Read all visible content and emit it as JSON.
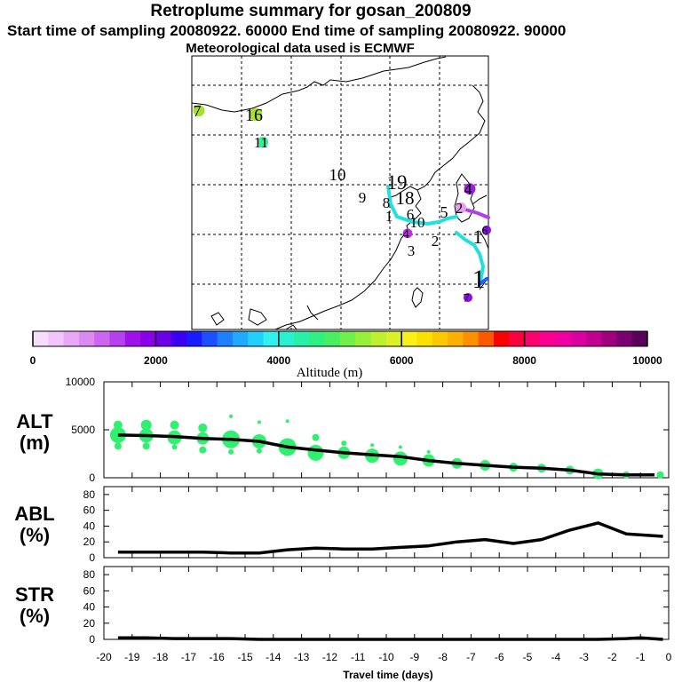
{
  "header": {
    "title": "Retroplume summary for gosan_200809",
    "sampling": "Start time of sampling 20080922. 60000     End time of sampling 20080922. 90000",
    "met": "Meteorological data used is ECMWF"
  },
  "colorbar": {
    "ticks": [
      "0",
      "2000",
      "4000",
      "6000",
      "8000",
      "10000"
    ],
    "label": "Altitude (m)",
    "colors": [
      "#f8dcfc",
      "#f2c6fa",
      "#e8a8f6",
      "#dc8af2",
      "#cc66ee",
      "#b640ec",
      "#a010ea",
      "#8a00e8",
      "#6e00e6",
      "#3c00f0",
      "#1a1aff",
      "#1c50ff",
      "#1e80ff",
      "#20aaff",
      "#20d0ff",
      "#30f0f0",
      "#28f0d0",
      "#28f0a8",
      "#30f080",
      "#48f060",
      "#70f048",
      "#98f038",
      "#bcf030",
      "#dcf028",
      "#f8f018",
      "#fce000",
      "#fcc800",
      "#fcb000",
      "#fc9000",
      "#fc5800",
      "#fc0000",
      "#fc0040",
      "#fc0070",
      "#fc0090",
      "#f000a0",
      "#dc00a0",
      "#c00090",
      "#a00080",
      "#780070",
      "#5a0058"
    ]
  },
  "map": {
    "day_labels": [
      {
        "t": "7",
        "x": 222,
        "y": 131,
        "size": 18,
        "spot": "#a8e030"
      },
      {
        "t": "16",
        "x": 286,
        "y": 136,
        "size": 20,
        "spot": "#a8e030"
      },
      {
        "t": "11",
        "x": 294,
        "y": 166,
        "size": 17,
        "spot": "#30f0a0"
      },
      {
        "t": "10",
        "x": 380,
        "y": 203,
        "size": 19,
        "spot": ""
      },
      {
        "t": "9",
        "x": 408,
        "y": 228,
        "size": 17,
        "spot": ""
      },
      {
        "t": "19",
        "x": 447,
        "y": 213,
        "size": 23,
        "spot": ""
      },
      {
        "t": "8",
        "x": 435,
        "y": 234,
        "size": 17,
        "spot": ""
      },
      {
        "t": "18",
        "x": 456,
        "y": 230,
        "size": 21,
        "spot": ""
      },
      {
        "t": "6",
        "x": 462,
        "y": 247,
        "size": 17,
        "spot": ""
      },
      {
        "t": "10",
        "x": 470,
        "y": 256,
        "size": 17,
        "spot": ""
      },
      {
        "t": "5",
        "x": 500,
        "y": 245,
        "size": 18,
        "spot": ""
      },
      {
        "t": "2",
        "x": 517,
        "y": 240,
        "size": 17,
        "spot": "#e6a0f0"
      },
      {
        "t": "4",
        "x": 527,
        "y": 219,
        "size": 18,
        "spot": "#9a20e0"
      },
      {
        "t": "1",
        "x": 438,
        "y": 249,
        "size": 17,
        "spot": ""
      },
      {
        "t": "3",
        "x": 463,
        "y": 288,
        "size": 17,
        "spot": ""
      },
      {
        "t": "4",
        "x": 457,
        "y": 268,
        "size": 15,
        "spot": "#c030e8"
      },
      {
        "t": "2",
        "x": 490,
        "y": 277,
        "size": 17,
        "spot": ""
      },
      {
        "t": "1",
        "x": 538,
        "y": 274,
        "size": 22,
        "spot": ""
      },
      {
        "t": "6",
        "x": 546,
        "y": 264,
        "size": 14,
        "spot": "#8a10e0"
      },
      {
        "t": "1",
        "x": 539,
        "y": 324,
        "size": 30,
        "spot": ""
      },
      {
        "t": "7",
        "x": 525,
        "y": 340,
        "size": 14,
        "spot": "#8a10e0"
      }
    ]
  },
  "chart_data": {
    "type": "line",
    "xlabel": "Travel time (days)",
    "x_ticks": [
      "-20",
      "-19",
      "-18",
      "-17",
      "-16",
      "-15",
      "-14",
      "-13",
      "-12",
      "-11",
      "-10",
      "-9",
      "-8",
      "-7",
      "-6",
      "-5",
      "-4",
      "-3",
      "-2",
      "-1",
      "0"
    ],
    "xlim": [
      -20,
      0
    ],
    "panels": [
      {
        "name": "ALT",
        "unit": "(m)",
        "ylim": [
          0,
          10000
        ],
        "y_ticks": [
          "0",
          "5000",
          "10000"
        ],
        "x": [
          -19.5,
          -18.5,
          -17.5,
          -16.5,
          -15.5,
          -14.5,
          -13.5,
          -12.5,
          -11.5,
          -10.5,
          -9.5,
          -8.5,
          -7.5,
          -6.5,
          -5.5,
          -4.5,
          -3.5,
          -2.5,
          -1.5,
          -0.5
        ],
        "values": [
          4450,
          4400,
          4300,
          4100,
          4000,
          3800,
          3200,
          2900,
          2600,
          2400,
          2200,
          1800,
          1500,
          1300,
          1100,
          1000,
          800,
          400,
          300,
          300
        ],
        "scatter": [
          {
            "x": -19.5,
            "y": 4450,
            "r": 9
          },
          {
            "x": -19.5,
            "y": 5500,
            "r": 5
          },
          {
            "x": -19.5,
            "y": 3300,
            "r": 4
          },
          {
            "x": -18.5,
            "y": 4400,
            "r": 8
          },
          {
            "x": -18.5,
            "y": 5500,
            "r": 6
          },
          {
            "x": -18.5,
            "y": 3300,
            "r": 4
          },
          {
            "x": -17.5,
            "y": 4200,
            "r": 8
          },
          {
            "x": -17.5,
            "y": 5500,
            "r": 5
          },
          {
            "x": -17.5,
            "y": 3200,
            "r": 3
          },
          {
            "x": -16.5,
            "y": 4100,
            "r": 7
          },
          {
            "x": -16.5,
            "y": 5200,
            "r": 5
          },
          {
            "x": -16.5,
            "y": 2900,
            "r": 4
          },
          {
            "x": -15.5,
            "y": 4000,
            "r": 10
          },
          {
            "x": -15.5,
            "y": 6400,
            "r": 2
          },
          {
            "x": -15.5,
            "y": 2700,
            "r": 3
          },
          {
            "x": -14.5,
            "y": 3800,
            "r": 8
          },
          {
            "x": -14.5,
            "y": 5800,
            "r": 2
          },
          {
            "x": -14.5,
            "y": 2800,
            "r": 3
          },
          {
            "x": -13.5,
            "y": 3200,
            "r": 10
          },
          {
            "x": -13.5,
            "y": 5900,
            "r": 2
          },
          {
            "x": -12.5,
            "y": 2600,
            "r": 9
          },
          {
            "x": -12.5,
            "y": 4200,
            "r": 4
          },
          {
            "x": -11.5,
            "y": 2600,
            "r": 7
          },
          {
            "x": -11.5,
            "y": 3600,
            "r": 3
          },
          {
            "x": -10.5,
            "y": 2300,
            "r": 8
          },
          {
            "x": -10.5,
            "y": 3400,
            "r": 2
          },
          {
            "x": -9.5,
            "y": 2000,
            "r": 8
          },
          {
            "x": -9.5,
            "y": 3200,
            "r": 2
          },
          {
            "x": -8.5,
            "y": 1800,
            "r": 7
          },
          {
            "x": -8.5,
            "y": 2700,
            "r": 2
          },
          {
            "x": -7.5,
            "y": 1500,
            "r": 6
          },
          {
            "x": -6.5,
            "y": 1300,
            "r": 6
          },
          {
            "x": -5.5,
            "y": 1100,
            "r": 5
          },
          {
            "x": -4.5,
            "y": 1000,
            "r": 5
          },
          {
            "x": -3.5,
            "y": 800,
            "r": 5
          },
          {
            "x": -2.5,
            "y": 400,
            "r": 6
          },
          {
            "x": -1.5,
            "y": 300,
            "r": 4
          },
          {
            "x": -0.3,
            "y": 300,
            "r": 4
          }
        ]
      },
      {
        "name": "ABL",
        "unit": "(%)",
        "ylim": [
          0,
          90
        ],
        "y_ticks": [
          "0",
          "20",
          "40",
          "60",
          "80"
        ],
        "x": [
          -19.5,
          -18.5,
          -17.5,
          -16.5,
          -15.5,
          -14.5,
          -13.5,
          -12.5,
          -11.5,
          -10.5,
          -9.5,
          -8.5,
          -7.5,
          -6.5,
          -5.5,
          -4.5,
          -3.5,
          -2.5,
          -1.5,
          -0.2
        ],
        "values": [
          7,
          7,
          7,
          7,
          6,
          6,
          10,
          12,
          11,
          11,
          13,
          15,
          20,
          23,
          18,
          23,
          35,
          44,
          30,
          27
        ]
      },
      {
        "name": "STR",
        "unit": "(%)",
        "ylim": [
          0,
          90
        ],
        "y_ticks": [
          "0",
          "20",
          "40",
          "60",
          "80"
        ],
        "x": [
          -19.5,
          -18.5,
          -17.5,
          -16.5,
          -15.5,
          -14.5,
          -13.5,
          -12.5,
          -11.5,
          -10.5,
          -9.5,
          -8.5,
          -7.5,
          -6.5,
          -5.5,
          -4.5,
          -3.5,
          -2.5,
          -1.5,
          -1.0,
          -0.2
        ],
        "values": [
          2,
          2,
          1,
          1,
          1,
          0,
          0,
          0,
          0,
          0,
          0,
          0,
          0,
          0,
          0,
          0,
          0,
          0,
          1,
          2,
          0
        ]
      }
    ]
  }
}
